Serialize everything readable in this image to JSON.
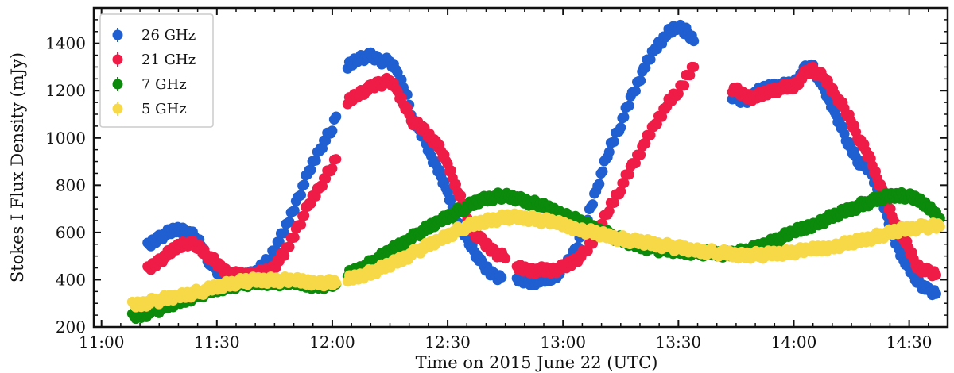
{
  "chart_data": {
    "type": "scatter",
    "title": "",
    "xlabel": "Time on 2015 June 22 (UTC)",
    "ylabel": "Stokes I Flux Density (mJy)",
    "x_unit": "minutes after 11:00 UTC",
    "xlim": [
      -2,
      220
    ],
    "ylim": [
      200,
      1550
    ],
    "x_ticks": [
      0,
      30,
      60,
      90,
      120,
      150,
      180,
      210
    ],
    "x_tick_labels": [
      "11:00",
      "11:30",
      "12:00",
      "12:30",
      "13:00",
      "13:30",
      "14:00",
      "14:30"
    ],
    "y_ticks": [
      200,
      400,
      600,
      800,
      1000,
      1200,
      1400
    ],
    "y_tick_labels": [
      "200",
      "400",
      "600",
      "800",
      "1000",
      "1200",
      "1400"
    ],
    "grid": false,
    "legend_position": "top-left",
    "series": [
      {
        "name": "26 GHz",
        "color": "#1f5fd1",
        "segments": [
          [
            [
              12,
              540
            ],
            [
              15,
              580
            ],
            [
              19,
              610
            ],
            [
              22,
              610
            ],
            [
              25,
              570
            ],
            [
              28,
              480
            ],
            [
              31,
              415
            ],
            [
              34,
              410
            ],
            [
              38,
              420
            ],
            [
              41,
              440
            ],
            [
              44,
              500
            ],
            [
              48,
              620
            ],
            [
              51,
              740
            ],
            [
              54,
              860
            ],
            [
              57,
              960
            ],
            [
              60,
              1040
            ],
            [
              61,
              1090
            ]
          ],
          [
            [
              64,
              1300
            ],
            [
              67,
              1340
            ],
            [
              70,
              1345
            ],
            [
              72,
              1330
            ],
            [
              75,
              1320
            ],
            [
              77,
              1280
            ],
            [
              79,
              1200
            ],
            [
              81,
              1080
            ],
            [
              84,
              990
            ],
            [
              87,
              880
            ],
            [
              90,
              770
            ],
            [
              93,
              630
            ],
            [
              96,
              550
            ],
            [
              99,
              460
            ],
            [
              102,
              420
            ],
            [
              104,
              410
            ]
          ],
          [
            [
              108,
              400
            ],
            [
              111,
              390
            ],
            [
              114,
              395
            ],
            [
              117,
              410
            ],
            [
              120,
              440
            ],
            [
              123,
              520
            ],
            [
              126,
              640
            ],
            [
              129,
              800
            ],
            [
              132,
              950
            ],
            [
              135,
              1060
            ],
            [
              138,
              1180
            ],
            [
              141,
              1290
            ],
            [
              144,
              1380
            ],
            [
              147,
              1440
            ],
            [
              150,
              1475
            ],
            [
              152,
              1450
            ],
            [
              154,
              1410
            ]
          ],
          [
            [
              164,
              1180
            ],
            [
              167,
              1150
            ],
            [
              170,
              1190
            ],
            [
              174,
              1220
            ],
            [
              177,
              1220
            ],
            [
              180,
              1230
            ],
            [
              183,
              1290
            ],
            [
              185,
              1300
            ],
            [
              188,
              1200
            ],
            [
              191,
              1100
            ],
            [
              194,
              980
            ],
            [
              197,
              900
            ],
            [
              200,
              860
            ],
            [
              203,
              730
            ],
            [
              206,
              580
            ],
            [
              209,
              470
            ],
            [
              212,
              400
            ],
            [
              215,
              350
            ],
            [
              217,
              340
            ]
          ]
        ]
      },
      {
        "name": "21 GHz",
        "color": "#ee1c47",
        "segments": [
          [
            [
              12,
              440
            ],
            [
              15,
              480
            ],
            [
              19,
              530
            ],
            [
              22,
              560
            ],
            [
              25,
              540
            ],
            [
              28,
              500
            ],
            [
              31,
              450
            ],
            [
              34,
              420
            ],
            [
              38,
              420
            ],
            [
              41,
              425
            ],
            [
              44,
              440
            ],
            [
              48,
              520
            ],
            [
              51,
              620
            ],
            [
              54,
              720
            ],
            [
              57,
              800
            ],
            [
              60,
              880
            ],
            [
              61,
              910
            ]
          ],
          [
            [
              64,
              1150
            ],
            [
              67,
              1190
            ],
            [
              70,
              1210
            ],
            [
              72,
              1230
            ],
            [
              75,
              1240
            ],
            [
              77,
              1200
            ],
            [
              79,
              1130
            ],
            [
              81,
              1070
            ],
            [
              84,
              1030
            ],
            [
              87,
              980
            ],
            [
              90,
              890
            ],
            [
              93,
              760
            ],
            [
              96,
              620
            ],
            [
              99,
              560
            ],
            [
              102,
              520
            ],
            [
              105,
              490
            ]
          ],
          [
            [
              108,
              450
            ],
            [
              111,
              440
            ],
            [
              114,
              440
            ],
            [
              117,
              440
            ],
            [
              120,
              450
            ],
            [
              123,
              480
            ],
            [
              126,
              520
            ],
            [
              129,
              600
            ],
            [
              132,
              700
            ],
            [
              135,
              790
            ],
            [
              138,
              880
            ],
            [
              141,
              970
            ],
            [
              144,
              1060
            ],
            [
              147,
              1140
            ],
            [
              150,
              1200
            ],
            [
              152,
              1250
            ],
            [
              154,
              1300
            ]
          ],
          [
            [
              164,
              1210
            ],
            [
              167,
              1180
            ],
            [
              170,
              1170
            ],
            [
              174,
              1200
            ],
            [
              177,
              1210
            ],
            [
              180,
              1220
            ],
            [
              183,
              1270
            ],
            [
              185,
              1290
            ],
            [
              188,
              1250
            ],
            [
              191,
              1180
            ],
            [
              194,
              1100
            ],
            [
              197,
              1000
            ],
            [
              200,
              900
            ],
            [
              203,
              780
            ],
            [
              206,
              650
            ],
            [
              209,
              560
            ],
            [
              212,
              460
            ],
            [
              215,
              430
            ],
            [
              217,
              420
            ]
          ]
        ]
      },
      {
        "name": "7 GHz",
        "color": "#0b8a0b",
        "segments": [
          [
            [
              8,
              240
            ],
            [
              14,
              270
            ],
            [
              20,
              305
            ],
            [
              26,
              340
            ],
            [
              32,
              370
            ],
            [
              38,
              385
            ],
            [
              44,
              390
            ],
            [
              50,
              385
            ],
            [
              56,
              375
            ],
            [
              61,
              380
            ]
          ],
          [
            [
              64,
              420
            ],
            [
              70,
              470
            ],
            [
              76,
              530
            ],
            [
              82,
              590
            ],
            [
              88,
              650
            ],
            [
              94,
              700
            ],
            [
              99,
              740
            ],
            [
              104,
              755
            ],
            [
              109,
              740
            ],
            [
              114,
              715
            ],
            [
              120,
              680
            ],
            [
              126,
              630
            ],
            [
              132,
              590
            ],
            [
              138,
              550
            ],
            [
              144,
              530
            ],
            [
              150,
              520
            ],
            [
              156,
              515
            ],
            [
              162,
              510
            ],
            [
              168,
              520
            ],
            [
              174,
              560
            ],
            [
              180,
              600
            ],
            [
              186,
              640
            ],
            [
              192,
              680
            ],
            [
              198,
              720
            ],
            [
              204,
              750
            ],
            [
              208,
              760
            ],
            [
              212,
              740
            ],
            [
              216,
              700
            ],
            [
              218,
              660
            ]
          ]
        ]
      },
      {
        "name": "5 GHz",
        "color": "#f7d948",
        "segments": [
          [
            [
              8,
              290
            ],
            [
              14,
              310
            ],
            [
              20,
              330
            ],
            [
              26,
              350
            ],
            [
              32,
              380
            ],
            [
              38,
              395
            ],
            [
              44,
              400
            ],
            [
              50,
              395
            ],
            [
              56,
              390
            ],
            [
              61,
              385
            ]
          ],
          [
            [
              64,
              400
            ],
            [
              70,
              430
            ],
            [
              76,
              470
            ],
            [
              82,
              520
            ],
            [
              88,
              570
            ],
            [
              94,
              620
            ],
            [
              100,
              650
            ],
            [
              106,
              665
            ],
            [
              112,
              660
            ],
            [
              118,
              640
            ],
            [
              124,
              615
            ],
            [
              130,
              590
            ],
            [
              136,
              570
            ],
            [
              142,
              555
            ],
            [
              148,
              540
            ],
            [
              154,
              525
            ],
            [
              160,
              515
            ],
            [
              166,
              505
            ],
            [
              172,
              505
            ],
            [
              178,
              515
            ],
            [
              184,
              525
            ],
            [
              190,
              540
            ],
            [
              196,
              560
            ],
            [
              202,
              585
            ],
            [
              208,
              610
            ],
            [
              214,
              625
            ],
            [
              218,
              625
            ]
          ]
        ]
      }
    ]
  }
}
